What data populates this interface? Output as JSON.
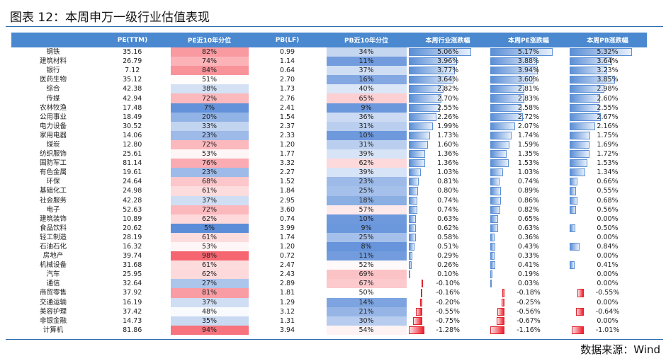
{
  "title": "图表 12：本周申万一级行业估值表现",
  "source": "数据来源：Wind",
  "headers": [
    "",
    "PE(TTM)",
    "PE近10年分位",
    "PB(LF)",
    "PB近10年分位",
    "本周行业涨跌幅",
    "本周PE涨跌幅",
    "本周PB涨跌幅"
  ],
  "colors": {
    "header": "#4a88cf",
    "positive_bar": "#5b8fd6",
    "negative_bar": "#e0262f",
    "high_pct": "#f6606b",
    "low_pct": "#4a80d4"
  },
  "chart_data": {
    "type": "table",
    "columns": [
      "行业",
      "PE(TTM)",
      "PE近10年分位",
      "PB(LF)",
      "PB近10年分位",
      "本周行业涨跌幅",
      "本周PE涨跌幅",
      "本周PB涨跌幅"
    ],
    "rows": [
      [
        "钢铁",
        "35.16",
        "82%",
        "0.99",
        "34%",
        "5.06%",
        "5.17%",
        "5.32%"
      ],
      [
        "建筑材料",
        "26.79",
        "74%",
        "1.14",
        "11%",
        "3.96%",
        "3.88%",
        "3.64%"
      ],
      [
        "银行",
        "7.12",
        "84%",
        "0.64",
        "37%",
        "3.77%",
        "3.94%",
        "3.23%"
      ],
      [
        "医药生物",
        "35.12",
        "51%",
        "2.70",
        "16%",
        "3.64%",
        "3.60%",
        "3.85%"
      ],
      [
        "综合",
        "42.38",
        "38%",
        "1.73",
        "40%",
        "2.82%",
        "2.81%",
        "2.98%"
      ],
      [
        "传媒",
        "42.94",
        "72%",
        "2.76",
        "65%",
        "2.70%",
        "2.83%",
        "2.60%"
      ],
      [
        "农林牧渔",
        "17.48",
        "7%",
        "2.41",
        "9%",
        "2.55%",
        "2.58%",
        "2.55%"
      ],
      [
        "公用事业",
        "18.49",
        "20%",
        "1.54",
        "36%",
        "2.26%",
        "2.72%",
        "2.67%"
      ],
      [
        "电力设备",
        "30.52",
        "33%",
        "2.37",
        "31%",
        "1.99%",
        "2.07%",
        "2.16%"
      ],
      [
        "家用电器",
        "14.06",
        "23%",
        "2.33",
        "10%",
        "1.73%",
        "1.74%",
        "1.75%"
      ],
      [
        "煤炭",
        "12.80",
        "72%",
        "1.20",
        "31%",
        "1.60%",
        "1.59%",
        "1.69%"
      ],
      [
        "纺织服饰",
        "25.61",
        "53%",
        "1.77",
        "39%",
        "1.36%",
        "1.35%",
        "1.72%"
      ],
      [
        "国防军工",
        "81.14",
        "76%",
        "3.32",
        "62%",
        "1.36%",
        "1.53%",
        "1.53%"
      ],
      [
        "有色金属",
        "19.61",
        "23%",
        "2.27",
        "39%",
        "1.03%",
        "1.03%",
        "1.34%"
      ],
      [
        "环保",
        "24.64",
        "68%",
        "1.52",
        "23%",
        "0.81%",
        "0.74%",
        "0.66%"
      ],
      [
        "基础化工",
        "24.98",
        "61%",
        "1.84",
        "25%",
        "0.80%",
        "0.89%",
        "0.55%"
      ],
      [
        "社会服务",
        "42.28",
        "37%",
        "2.95",
        "18%",
        "0.74%",
        "0.86%",
        "0.68%"
      ],
      [
        "电子",
        "52.63",
        "72%",
        "3.60",
        "57%",
        "0.74%",
        "0.82%",
        "0.56%"
      ],
      [
        "建筑装饰",
        "10.89",
        "62%",
        "0.74",
        "10%",
        "0.63%",
        "0.65%",
        "0.00%"
      ],
      [
        "食品饮料",
        "20.62",
        "5%",
        "3.99",
        "9%",
        "0.62%",
        "0.63%",
        "0.50%"
      ],
      [
        "轻工制造",
        "28.19",
        "61%",
        "1.74",
        "25%",
        "0.58%",
        "0.36%",
        "0.00%"
      ],
      [
        "石油石化",
        "16.32",
        "53%",
        "1.20",
        "8%",
        "0.51%",
        "0.43%",
        "0.84%"
      ],
      [
        "房地产",
        "39.74",
        "98%",
        "0.72",
        "11%",
        "0.29%",
        "0.33%",
        "0.00%"
      ],
      [
        "机械设备",
        "31.68",
        "61%",
        "2.47",
        "52%",
        "0.26%",
        "0.41%",
        "0.41%"
      ],
      [
        "汽车",
        "25.95",
        "62%",
        "2.43",
        "69%",
        "0.10%",
        "0.19%",
        "0.00%"
      ],
      [
        "通信",
        "32.64",
        "27%",
        "2.89",
        "67%",
        "-0.10%",
        "0.03%",
        "0.00%"
      ],
      [
        "商贸零售",
        "37.92",
        "81%",
        "1.81",
        "50%",
        "-0.16%",
        "-0.18%",
        "-0.55%"
      ],
      [
        "交通运输",
        "16.19",
        "37%",
        "1.29",
        "14%",
        "-0.20%",
        "-0.25%",
        "0.00%"
      ],
      [
        "美容护理",
        "37.42",
        "48%",
        "3.12",
        "21%",
        "-0.55%",
        "-0.56%",
        "-0.64%"
      ],
      [
        "非银金融",
        "14.73",
        "35%",
        "1.31",
        "30%",
        "-0.75%",
        "-0.67%",
        "0.00%"
      ],
      [
        "计算机",
        "81.86",
        "94%",
        "3.94",
        "54%",
        "-1.28%",
        "-1.16%",
        "-1.01%"
      ]
    ]
  }
}
